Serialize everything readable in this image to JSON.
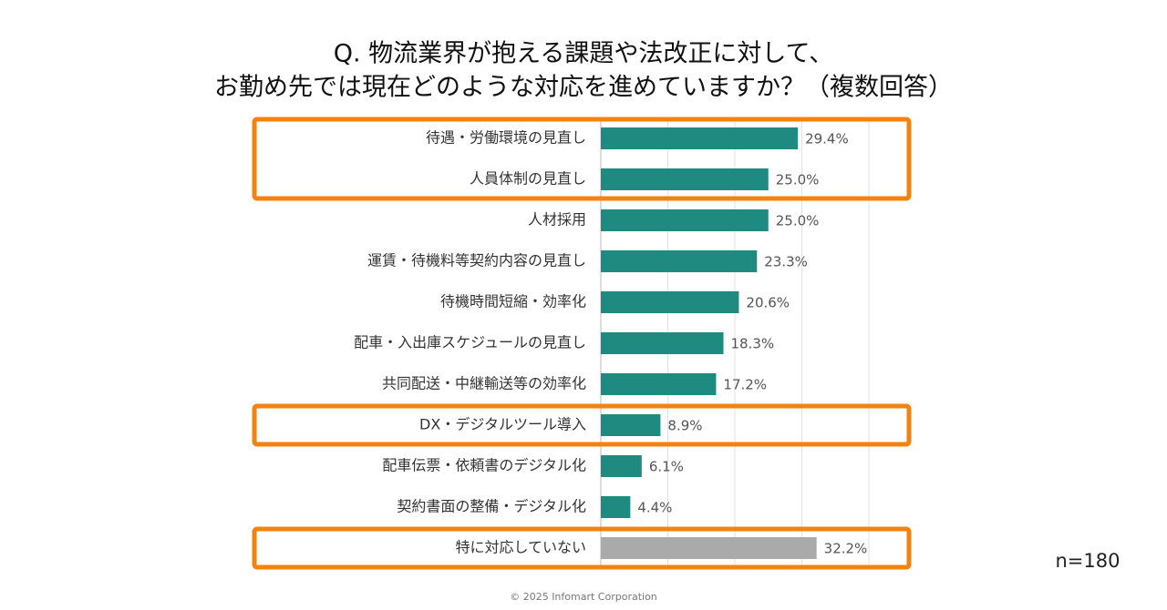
{
  "chart_data": {
    "type": "bar",
    "orientation": "horizontal",
    "title": [
      "Q. 物流業界が抱える課題や法改正に対して、",
      "お勤め先では現在どのような対応を進めていますか？（複数回答）"
    ],
    "categories": [
      "待遇・労働環境の見直し",
      "人員体制の見直し",
      "人材採用",
      "運賃・待機料等契約内容の見直し",
      "待機時間短縮・効率化",
      "配車・入出庫スケジュールの見直し",
      "共同配送・中継輸送等の効率化",
      "DX・デジタルツール導入",
      "配車伝票・依頼書のデジタル化",
      "契約書面の整備・デジタル化",
      "特に対応していない"
    ],
    "values": [
      29.4,
      25.0,
      25.0,
      23.3,
      20.6,
      18.3,
      17.2,
      8.9,
      6.1,
      4.4,
      32.2
    ],
    "value_labels": [
      "29.4%",
      "25.0%",
      "25.0%",
      "23.3%",
      "20.6%",
      "18.3%",
      "17.2%",
      "8.9%",
      "6.1%",
      "4.4%",
      "32.2%"
    ],
    "colors": [
      "#1e8a80",
      "#1e8a80",
      "#1e8a80",
      "#1e8a80",
      "#1e8a80",
      "#1e8a80",
      "#1e8a80",
      "#1e8a80",
      "#1e8a80",
      "#1e8a80",
      "#aaaaaa"
    ],
    "xlim": [
      0,
      40
    ],
    "xticks": [
      0,
      10,
      20,
      30,
      40
    ],
    "grid": true,
    "highlights": [
      [
        0,
        1
      ],
      [
        7,
        7
      ],
      [
        10,
        10
      ]
    ],
    "highlight_color": "#f5820f",
    "note": "n=180",
    "footer": "© 2025 Infomart Corporation"
  }
}
